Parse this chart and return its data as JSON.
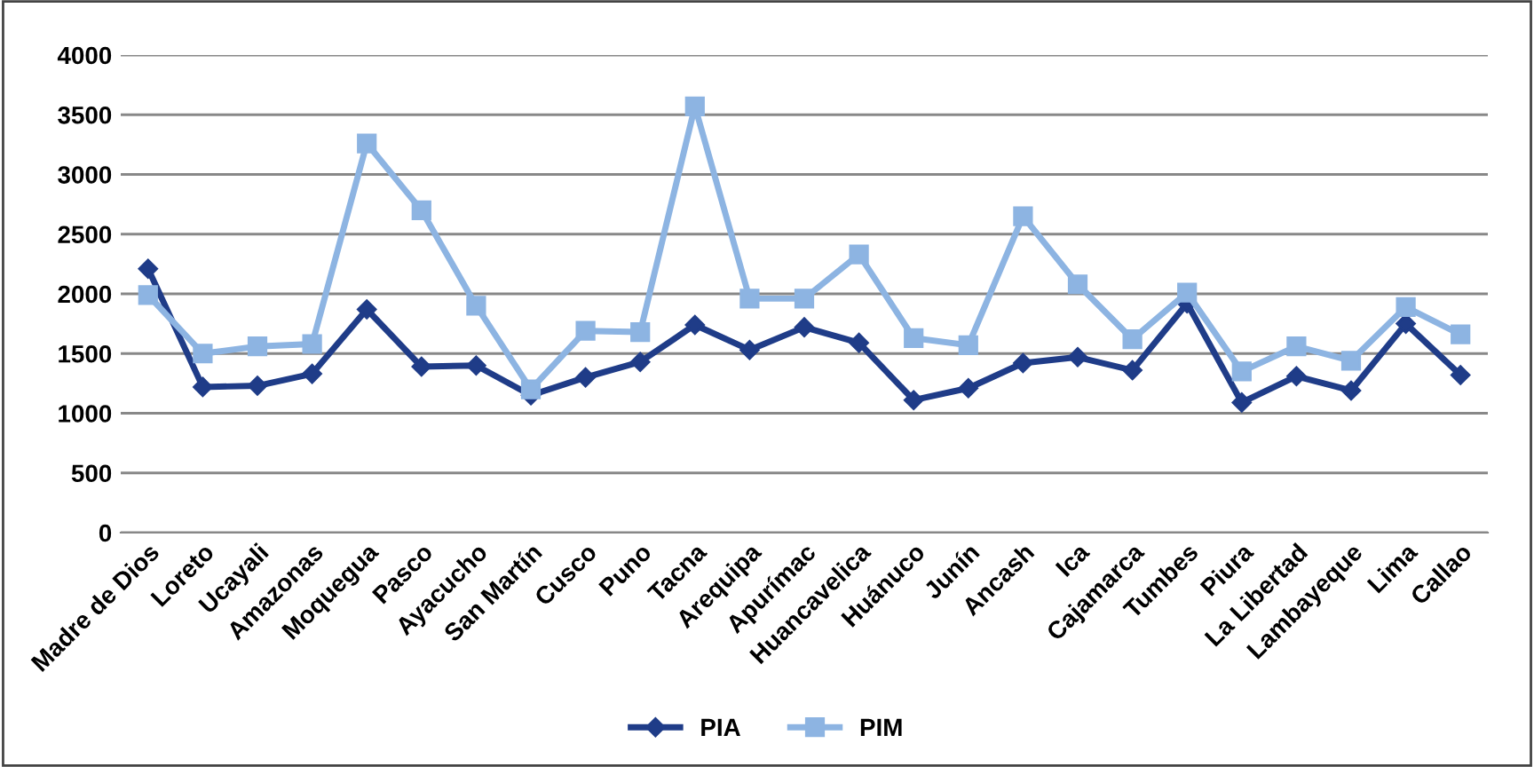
{
  "chart_data": {
    "type": "line",
    "categories": [
      "Madre de Dios",
      "Loreto",
      "Ucayali",
      "Amazonas",
      "Moquegua",
      "Pasco",
      "Ayacucho",
      "San Martín",
      "Cusco",
      "Puno",
      "Tacna",
      "Arequipa",
      "Apurímac",
      "Huancavelica",
      "Huánuco",
      "Junín",
      "Ancash",
      "Ica",
      "Cajamarca",
      "Tumbes",
      "Piura",
      "La Libertad",
      "Lambayeque",
      "Lima",
      "Callao"
    ],
    "series": [
      {
        "name": "PIA",
        "color": "#1f3c88",
        "marker": "diamond",
        "values": [
          2210,
          1220,
          1230,
          1330,
          1870,
          1390,
          1400,
          1150,
          1300,
          1430,
          1740,
          1530,
          1720,
          1590,
          1110,
          1210,
          1420,
          1470,
          1360,
          1920,
          1090,
          1310,
          1190,
          1750,
          1320
        ]
      },
      {
        "name": "PIM",
        "color": "#8db4e2",
        "marker": "square",
        "values": [
          1990,
          1500,
          1560,
          1580,
          3260,
          2700,
          1900,
          1200,
          1690,
          1680,
          3570,
          1960,
          1960,
          2330,
          1630,
          1570,
          2650,
          2080,
          1620,
          2010,
          1350,
          1560,
          1440,
          1890,
          1660
        ]
      }
    ],
    "ylim": [
      0,
      4000
    ],
    "yticks": [
      0,
      500,
      1000,
      1500,
      2000,
      2500,
      3000,
      3500,
      4000
    ],
    "grid": "y",
    "legend": "bottom"
  }
}
